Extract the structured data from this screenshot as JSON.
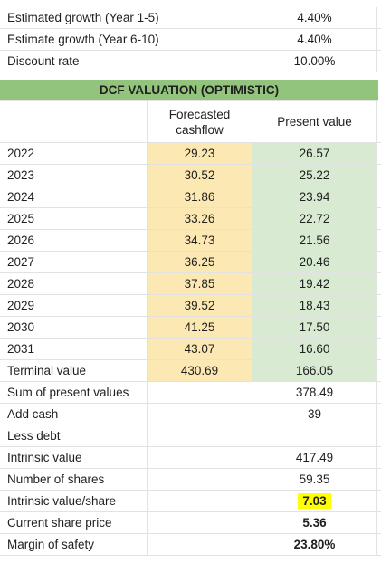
{
  "assumptions": [
    {
      "label": "Estimated growth (Year 1-5)",
      "value": "4.40%"
    },
    {
      "label": "Estimate growth (Year 6-10)",
      "value": "4.40%"
    },
    {
      "label": "Discount rate",
      "value": "10.00%"
    }
  ],
  "section_title": "DCF VALUATION (OPTIMISTIC)",
  "headers": {
    "forecasted": "Forecasted cashflow",
    "present": "Present value"
  },
  "years": [
    {
      "year": "2022",
      "cf": "29.23",
      "pv": "26.57"
    },
    {
      "year": "2023",
      "cf": "30.52",
      "pv": "25.22"
    },
    {
      "year": "2024",
      "cf": "31.86",
      "pv": "23.94"
    },
    {
      "year": "2025",
      "cf": "33.26",
      "pv": "22.72"
    },
    {
      "year": "2026",
      "cf": "34.73",
      "pv": "21.56"
    },
    {
      "year": "2027",
      "cf": "36.25",
      "pv": "20.46"
    },
    {
      "year": "2028",
      "cf": "37.85",
      "pv": "19.42"
    },
    {
      "year": "2029",
      "cf": "39.52",
      "pv": "18.43"
    },
    {
      "year": "2030",
      "cf": "41.25",
      "pv": "17.50"
    },
    {
      "year": "2031",
      "cf": "43.07",
      "pv": "16.60"
    }
  ],
  "terminal": {
    "label": "Terminal value",
    "cf": "430.69",
    "pv": "166.05"
  },
  "summary": [
    {
      "label": "Sum of present values",
      "value": "378.49"
    },
    {
      "label": "Add cash",
      "value": "39"
    },
    {
      "label": "Less debt",
      "value": ""
    },
    {
      "label": "Intrinsic value",
      "value": "417.49"
    },
    {
      "label": "Number of shares",
      "value": "59.35"
    },
    {
      "label": "Intrinsic value/share",
      "value": "7.03"
    },
    {
      "label": "Current share price",
      "value": "5.36"
    },
    {
      "label": "Margin of safety",
      "value": "23.80%"
    }
  ],
  "colors": {
    "band": "#93c47d",
    "forecast_fill": "#fce8b2",
    "present_fill": "#d9ead3",
    "highlight": "#ffff00"
  }
}
